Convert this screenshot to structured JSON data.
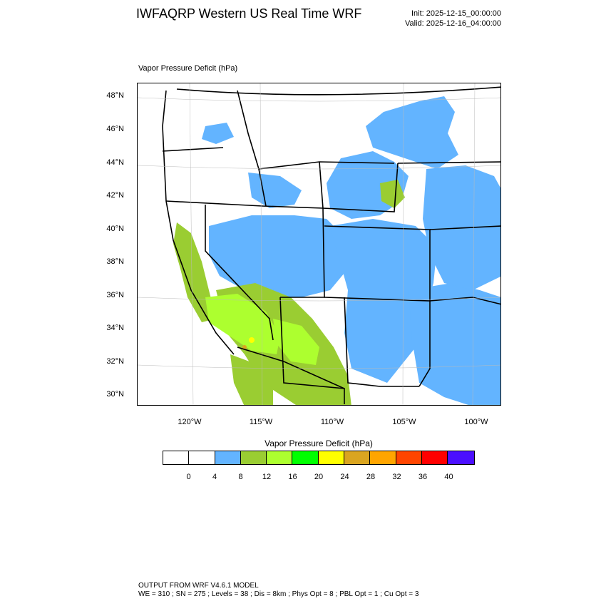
{
  "header": {
    "title": "IWFAQRP Western US Real Time WRF",
    "init": "Init: 2025-12-15_00:00:00",
    "valid": "Valid: 2025-12-16_04:00:00"
  },
  "field_label": "Vapor Pressure Deficit   (hPa)",
  "map": {
    "lat_labels": [
      "48°N",
      "46°N",
      "44°N",
      "42°N",
      "40°N",
      "38°N",
      "36°N",
      "34°N",
      "32°N",
      "30°N"
    ],
    "lon_labels": [
      "120°W",
      "115°W",
      "110°W",
      "105°W",
      "100°W"
    ]
  },
  "colorbar": {
    "title": "Vapor Pressure Deficit  (hPa)",
    "colors": [
      "#ffffff",
      "#ffffff",
      "#63b4ff",
      "#9acd32",
      "#adff2f",
      "#00ff00",
      "#ffff00",
      "#daa520",
      "#ffa500",
      "#ff4500",
      "#ff0000",
      "#4b0fff"
    ],
    "ticks": [
      "0",
      "4",
      "8",
      "12",
      "16",
      "20",
      "24",
      "28",
      "32",
      "36",
      "40"
    ]
  },
  "footer": {
    "line1": "OUTPUT FROM WRF V4.6.1 MODEL",
    "line2": "WE = 310 ; SN = 275 ; Levels = 38 ; Dis = 8km ; Phys Opt = 8 ; PBL Opt = 1 ; Cu Opt = 3"
  }
}
